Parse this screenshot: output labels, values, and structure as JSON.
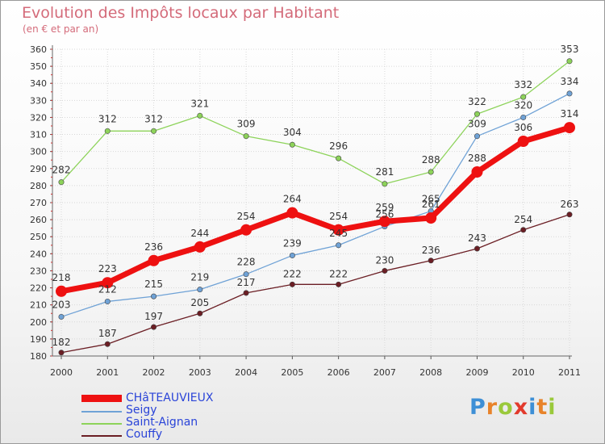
{
  "header": {
    "title": "Evolution des Impôts locaux par Habitant",
    "subtitle": "(en € et par an)"
  },
  "chart_data": {
    "type": "line",
    "title": "Evolution des Impôts locaux par Habitant",
    "subtitle": "(en € et par an)",
    "xlabel": "",
    "ylabel": "",
    "categories": [
      "2000",
      "2001",
      "2002",
      "2003",
      "2004",
      "2005",
      "2006",
      "2007",
      "2008",
      "2009",
      "2010",
      "2011"
    ],
    "ylim": [
      180,
      360
    ],
    "yticks": [
      180,
      190,
      200,
      210,
      220,
      230,
      240,
      250,
      260,
      270,
      280,
      290,
      300,
      310,
      320,
      330,
      340,
      350,
      360
    ],
    "grid": true,
    "legend_position": "bottom-left",
    "series": [
      {
        "name": "Couffy",
        "color": "#6b1e24",
        "values": [
          182,
          187,
          197,
          205,
          217,
          222,
          222,
          230,
          236,
          243,
          254,
          263
        ]
      },
      {
        "name": "Saint-Aignan",
        "color": "#8dd35a",
        "values": [
          282,
          312,
          312,
          321,
          309,
          304,
          296,
          281,
          288,
          322,
          332,
          353
        ]
      },
      {
        "name": "Seigy",
        "color": "#6fa2d6",
        "values": [
          203,
          212,
          215,
          219,
          228,
          239,
          245,
          256,
          265,
          309,
          320,
          334
        ]
      },
      {
        "name": "CHâTEAUVIEUX",
        "color": "#ee1111",
        "values": [
          218,
          223,
          236,
          244,
          254,
          264,
          254,
          259,
          261,
          288,
          306,
          314
        ]
      }
    ]
  },
  "legend": [
    {
      "name": "CHâTEAUVIEUX",
      "color": "#ee1111"
    },
    {
      "name": "Seigy",
      "color": "#6fa2d6"
    },
    {
      "name": "Saint-Aignan",
      "color": "#8dd35a"
    },
    {
      "name": "Couffy",
      "color": "#6b1e24"
    }
  ],
  "logo": {
    "letters": [
      "P",
      "r",
      "o",
      "x",
      "i",
      "t",
      "i"
    ],
    "colors": [
      "#3d8fd6",
      "#e8832a",
      "#9ac93b",
      "#e23a2c",
      "#3d8fd6",
      "#e8832a",
      "#9ac93b"
    ]
  }
}
